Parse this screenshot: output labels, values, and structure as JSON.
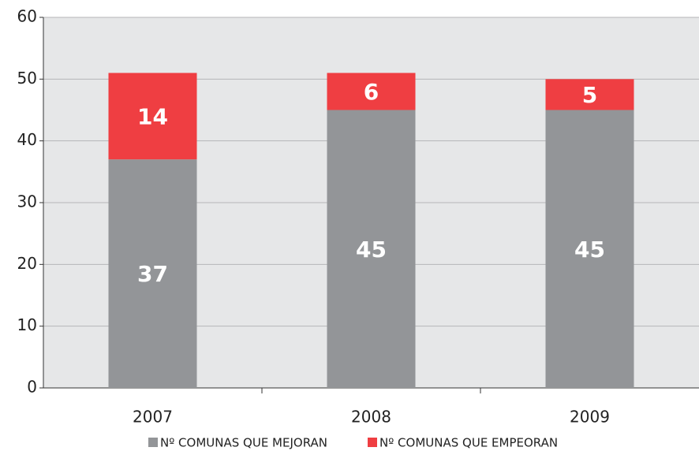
{
  "chart_data": {
    "type": "stacked_bar",
    "categories": [
      "2007",
      "2008",
      "2009"
    ],
    "series": [
      {
        "name": "Nº COMUNAS QUE MEJORAN",
        "color": "#939598",
        "values": [
          37,
          45,
          45
        ]
      },
      {
        "name": "Nº COMUNAS QUE EMPEORAN",
        "color": "#ef3e42",
        "values": [
          14,
          6,
          5
        ]
      }
    ],
    "ylim": [
      0,
      60
    ],
    "yticks": [
      0,
      10,
      20,
      30,
      40,
      50,
      60
    ],
    "grid": true,
    "legend": "bottom"
  }
}
